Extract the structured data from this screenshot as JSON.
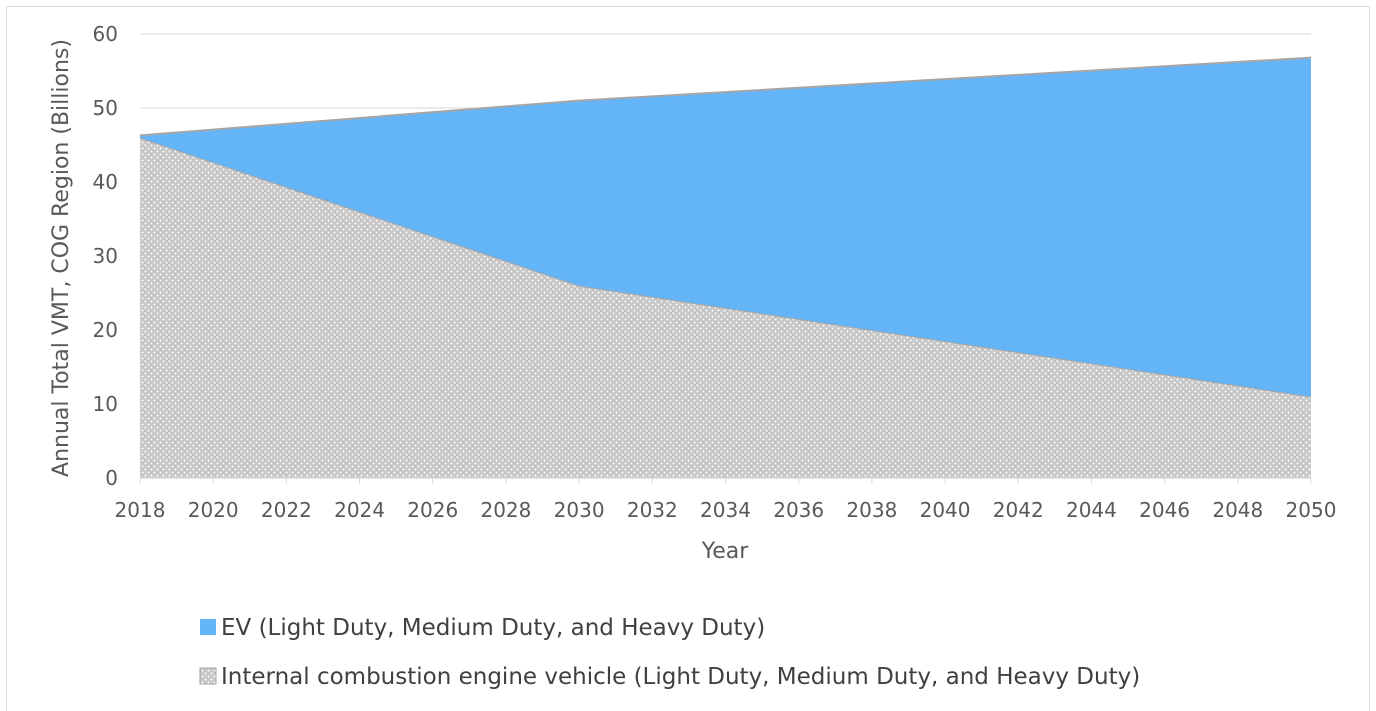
{
  "chart_data": {
    "type": "area",
    "stacked": true,
    "title": "",
    "xlabel": "Year",
    "ylabel": "Annual Total VMT, COG Region (Billions)",
    "xlim": [
      2018,
      2050
    ],
    "ylim": [
      0,
      60
    ],
    "xticks": [
      "2018",
      "2020",
      "2022",
      "2024",
      "2026",
      "2028",
      "2030",
      "2032",
      "2034",
      "2036",
      "2038",
      "2040",
      "2042",
      "2044",
      "2046",
      "2048",
      "2050"
    ],
    "yticks": [
      "0",
      "10",
      "20",
      "30",
      "40",
      "50",
      "60"
    ],
    "grid": true,
    "legend_position": "bottom",
    "x": [
      2018,
      2030,
      2050
    ],
    "series": [
      {
        "name": "Internal combustion engine vehicle (Light Duty, Medium Duty, and Heavy Duty)",
        "values": [
          46.0,
          26.0,
          11.0
        ],
        "color": "#c8c8c8",
        "pattern": "dotted"
      },
      {
        "name": "EV (Light Duty, Medium Duty, and Heavy Duty)",
        "values": [
          0.3,
          25.0,
          45.8
        ],
        "color": "#64b4f8"
      }
    ]
  }
}
